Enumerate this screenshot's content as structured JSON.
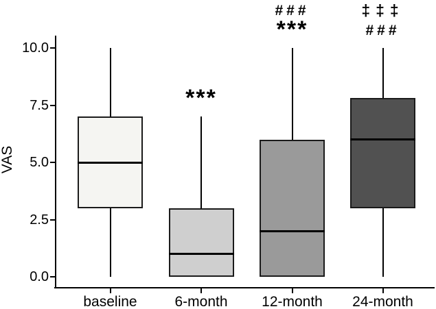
{
  "chart_data": {
    "type": "boxplot",
    "title": "",
    "xlabel": "",
    "ylabel": "VAS",
    "ylim": [
      0,
      10
    ],
    "grid": false,
    "legend": "none",
    "yticks": [
      {
        "value": 0,
        "label": "0.0"
      },
      {
        "value": 2.5,
        "label": "2.5"
      },
      {
        "value": 5,
        "label": "5.0"
      },
      {
        "value": 7.5,
        "label": "7.5"
      },
      {
        "value": 10,
        "label": "10.0"
      }
    ],
    "categories": [
      "baseline",
      "6-month",
      "12-month",
      "24-month"
    ],
    "series": [
      {
        "category": "baseline",
        "whisker_low": 0,
        "q1": 3,
        "median": 5,
        "q3": 7,
        "whisker_high": 10,
        "fill": "#f5f5f2",
        "textured": true,
        "annotations": []
      },
      {
        "category": "6-month",
        "whisker_low": 0,
        "q1": 0,
        "median": 1,
        "q3": 3,
        "whisker_high": 7,
        "fill": "#cfcfcf",
        "textured": false,
        "annotations": [
          "***"
        ]
      },
      {
        "category": "12-month",
        "whisker_low": 0,
        "q1": 0,
        "median": 2,
        "q3": 6,
        "whisker_high": 10,
        "fill": "#9a9a9a",
        "textured": false,
        "annotations": [
          "###",
          "***"
        ]
      },
      {
        "category": "24-month",
        "whisker_low": 0,
        "q1": 3,
        "median": 6,
        "q3": 7.8,
        "whisker_high": 10,
        "fill": "#515151",
        "textured": false,
        "annotations": [
          "‡‡‡",
          "###"
        ]
      }
    ],
    "colors": {
      "box_border": "#1a1a1a",
      "median": "#000000",
      "axis": "#000000",
      "text": "#000000",
      "background": "#ffffff"
    }
  }
}
